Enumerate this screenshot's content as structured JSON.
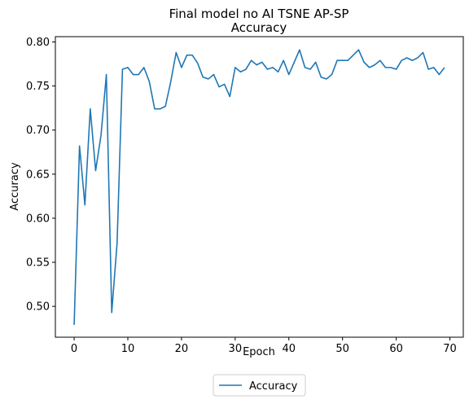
{
  "chart_data": {
    "type": "line",
    "title": "Final model no AI TSNE AP-SP",
    "subtitle": "Accuracy",
    "xlabel": "Epoch",
    "ylabel": "Accuracy",
    "xlim": [
      -3.5,
      72.5
    ],
    "ylim": [
      0.465,
      0.806
    ],
    "xticks": [
      0,
      10,
      20,
      30,
      40,
      50,
      60,
      70
    ],
    "yticks": [
      0.5,
      0.55,
      0.6,
      0.65,
      0.7,
      0.75,
      0.8
    ],
    "ytick_labels": [
      "0.50",
      "0.55",
      "0.60",
      "0.65",
      "0.70",
      "0.75",
      "0.80"
    ],
    "grid": false,
    "legend_position": "below-center",
    "series": [
      {
        "name": "Accuracy",
        "color": "#1f77b4",
        "x": [
          0,
          1,
          2,
          3,
          4,
          5,
          6,
          7,
          8,
          9,
          10,
          11,
          12,
          13,
          14,
          15,
          16,
          17,
          18,
          19,
          20,
          21,
          22,
          23,
          24,
          25,
          26,
          27,
          28,
          29,
          30,
          31,
          32,
          33,
          34,
          35,
          36,
          37,
          38,
          39,
          40,
          41,
          42,
          43,
          44,
          45,
          46,
          47,
          48,
          49,
          50,
          51,
          52,
          53,
          54,
          55,
          56,
          57,
          58,
          59,
          60,
          61,
          62,
          63,
          64,
          65,
          66,
          67,
          68,
          69
        ],
        "values": [
          0.479,
          0.682,
          0.615,
          0.724,
          0.654,
          0.694,
          0.763,
          0.493,
          0.572,
          0.769,
          0.771,
          0.763,
          0.763,
          0.771,
          0.755,
          0.724,
          0.724,
          0.727,
          0.755,
          0.788,
          0.771,
          0.785,
          0.785,
          0.776,
          0.76,
          0.758,
          0.763,
          0.749,
          0.752,
          0.738,
          0.771,
          0.766,
          0.769,
          0.779,
          0.774,
          0.777,
          0.769,
          0.771,
          0.766,
          0.779,
          0.763,
          0.777,
          0.791,
          0.771,
          0.769,
          0.777,
          0.76,
          0.758,
          0.763,
          0.779,
          0.779,
          0.779,
          0.785,
          0.791,
          0.777,
          0.771,
          0.774,
          0.779,
          0.771,
          0.771,
          0.769,
          0.779,
          0.782,
          0.779,
          0.782,
          0.788,
          0.769,
          0.771,
          0.763,
          0.771
        ]
      }
    ]
  }
}
